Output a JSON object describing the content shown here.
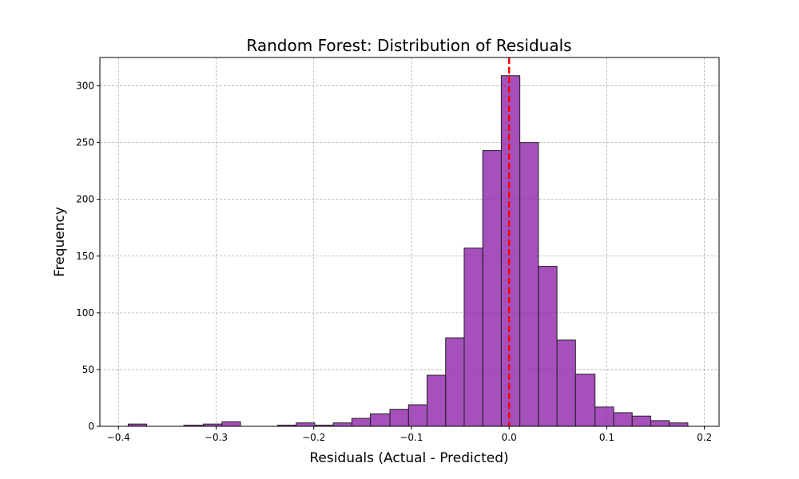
{
  "chart_data": {
    "type": "bar",
    "title": "Random Forest: Distribution of Residuals",
    "xlabel": "Residuals (Actual - Predicted)",
    "ylabel": "Frequency",
    "xlim": [
      -0.419,
      0.215
    ],
    "ylim": [
      0,
      325
    ],
    "xticks": [
      -0.4,
      -0.3,
      -0.2,
      -0.1,
      0.0,
      0.1,
      0.2
    ],
    "xtick_labels": [
      "−0.4",
      "−0.3",
      "−0.2",
      "−0.1",
      "0.0",
      "0.1",
      "0.2"
    ],
    "yticks": [
      0,
      50,
      100,
      150,
      200,
      250,
      300
    ],
    "ytick_labels": [
      "0",
      "50",
      "100",
      "150",
      "200",
      "250",
      "300"
    ],
    "grid": true,
    "bin_edges": [
      -0.39,
      -0.371,
      -0.352,
      -0.333,
      -0.313,
      -0.294,
      -0.275,
      -0.256,
      -0.237,
      -0.218,
      -0.199,
      -0.18,
      -0.161,
      -0.142,
      -0.122,
      -0.103,
      -0.084,
      -0.065,
      -0.046,
      -0.027,
      -0.008,
      0.011,
      0.03,
      0.049,
      0.068,
      0.088,
      0.107,
      0.126,
      0.145,
      0.164,
      0.183
    ],
    "counts": [
      2,
      0,
      0,
      1,
      2,
      4,
      0,
      0,
      1,
      3,
      1,
      3,
      7,
      11,
      15,
      19,
      45,
      78,
      157,
      243,
      309,
      250,
      141,
      76,
      46,
      17,
      12,
      9,
      5,
      3
    ],
    "bar_color": "#8E24AA",
    "bar_edge_color": "#222222",
    "reference_line": {
      "x": 0,
      "color": "#FF0000",
      "style": "dashed"
    }
  }
}
